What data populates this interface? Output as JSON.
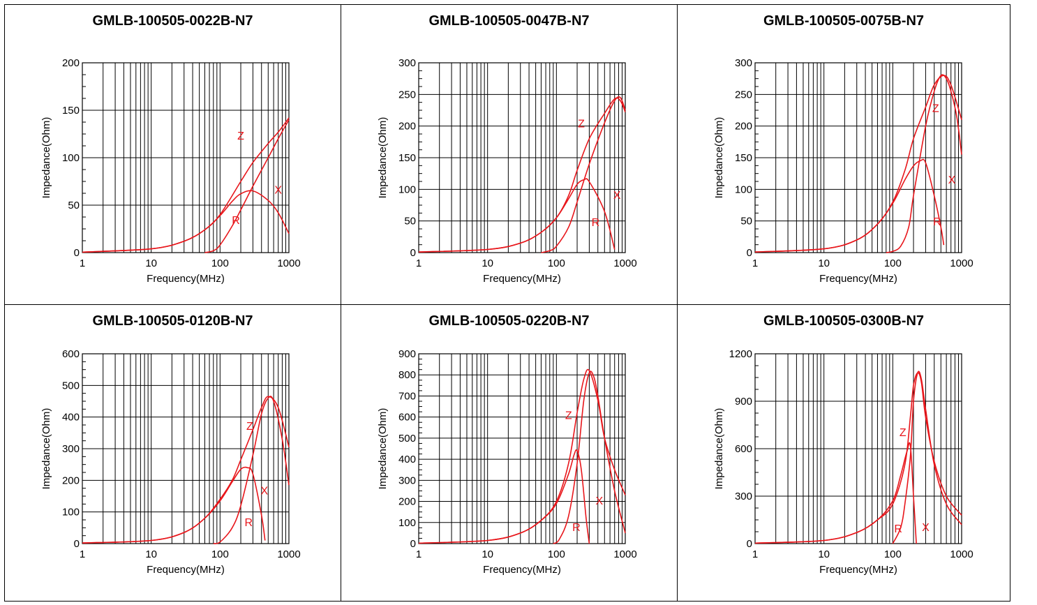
{
  "curve_color": "#e8161b",
  "chart_data": [
    {
      "type": "line",
      "title": "GMLB-100505-0022B-N7",
      "xlabel": "Frequency(MHz)",
      "ylabel": "Impedance(Ohm)",
      "xscale": "log",
      "xlim": [
        1,
        1000
      ],
      "ylim": [
        0,
        200
      ],
      "xticks": [
        "1",
        "10",
        "100",
        "1000"
      ],
      "yticks": [
        "0",
        "50",
        "100",
        "150",
        "200"
      ],
      "grid": true,
      "series": [
        {
          "name": "Z",
          "x": [
            1,
            10,
            30,
            60,
            100,
            200,
            300,
            500,
            700,
            1000
          ],
          "y": [
            0.5,
            4,
            12,
            24,
            40,
            75,
            95,
            115,
            127,
            142
          ]
        },
        {
          "name": "X",
          "x": [
            1,
            10,
            30,
            60,
            100,
            150,
            200,
            300,
            500,
            700,
            1000
          ],
          "y": [
            0.5,
            4,
            12,
            24,
            39,
            54,
            62,
            65,
            55,
            42,
            20
          ]
        },
        {
          "name": "R",
          "x": [
            60,
            80,
            100,
            150,
            200,
            300,
            500,
            700,
            1000
          ],
          "y": [
            0,
            2,
            8,
            28,
            45,
            70,
            100,
            120,
            140
          ]
        }
      ],
      "annotations": [
        {
          "text": "Z",
          "x": 200,
          "y": 119
        },
        {
          "text": "X",
          "x": 700,
          "y": 62
        },
        {
          "text": "R",
          "x": 170,
          "y": 30
        }
      ]
    },
    {
      "type": "line",
      "title": "GMLB-100505-0047B-N7",
      "xlabel": "Frequency(MHz)",
      "ylabel": "Impedance(Ohm)",
      "xscale": "log",
      "xlim": [
        1,
        1000
      ],
      "ylim": [
        0,
        300
      ],
      "xticks": [
        "1",
        "10",
        "100",
        "1000"
      ],
      "yticks": [
        "0",
        "50",
        "100",
        "150",
        "200",
        "250",
        "300"
      ],
      "grid": true,
      "series": [
        {
          "name": "Z",
          "x": [
            1,
            10,
            30,
            60,
            100,
            150,
            200,
            300,
            500,
            700,
            850,
            1000
          ],
          "y": [
            1,
            5,
            15,
            32,
            55,
            90,
            130,
            180,
            220,
            243,
            240,
            222
          ]
        },
        {
          "name": "X",
          "x": [
            1,
            10,
            30,
            60,
            100,
            150,
            200,
            250,
            300,
            500,
            700
          ],
          "y": [
            1,
            5,
            15,
            32,
            55,
            85,
            108,
            115,
            112,
            65,
            5
          ]
        },
        {
          "name": "R",
          "x": [
            60,
            80,
            100,
            150,
            200,
            300,
            500,
            700,
            850,
            1000
          ],
          "y": [
            0,
            3,
            10,
            40,
            80,
            140,
            205,
            240,
            245,
            225
          ]
        }
      ],
      "annotations": [
        {
          "text": "Z",
          "x": 230,
          "y": 198
        },
        {
          "text": "X",
          "x": 760,
          "y": 85
        },
        {
          "text": "R",
          "x": 370,
          "y": 42
        }
      ]
    },
    {
      "type": "line",
      "title": "GMLB-100505-0075B-N7",
      "xlabel": "Frequency(MHz)",
      "ylabel": "Impedance(Ohm)",
      "xscale": "log",
      "xlim": [
        1,
        1000
      ],
      "ylim": [
        0,
        300
      ],
      "xticks": [
        "1",
        "10",
        "100",
        "1000"
      ],
      "yticks": [
        "0",
        "50",
        "100",
        "150",
        "200",
        "250",
        "300"
      ],
      "grid": true,
      "series": [
        {
          "name": "Z",
          "x": [
            1,
            10,
            30,
            60,
            100,
            150,
            200,
            300,
            400,
            550,
            700,
            1000
          ],
          "y": [
            1,
            6,
            20,
            45,
            80,
            130,
            180,
            230,
            265,
            280,
            265,
            210
          ]
        },
        {
          "name": "X",
          "x": [
            1,
            10,
            30,
            60,
            100,
            150,
            200,
            250,
            300,
            400,
            500,
            550
          ],
          "y": [
            1,
            6,
            20,
            45,
            78,
            115,
            137,
            145,
            142,
            90,
            40,
            12
          ]
        },
        {
          "name": "R",
          "x": [
            80,
            100,
            130,
            170,
            200,
            300,
            400,
            500,
            600,
            700,
            850,
            1000
          ],
          "y": [
            0,
            2,
            10,
            40,
            90,
            200,
            255,
            280,
            275,
            255,
            215,
            155
          ]
        }
      ],
      "annotations": [
        {
          "text": "Z",
          "x": 420,
          "y": 222
        },
        {
          "text": "X",
          "x": 720,
          "y": 109
        },
        {
          "text": "R",
          "x": 440,
          "y": 43
        }
      ]
    },
    {
      "type": "line",
      "title": "GMLB-100505-0120B-N7",
      "xlabel": "Frequency(MHz)",
      "ylabel": "Impedance(Ohm)",
      "xscale": "log",
      "xlim": [
        1,
        1000
      ],
      "ylim": [
        0,
        600
      ],
      "xticks": [
        "1",
        "10",
        "100",
        "1000"
      ],
      "yticks": [
        "0",
        "100",
        "200",
        "300",
        "400",
        "500",
        "600"
      ],
      "grid": true,
      "series": [
        {
          "name": "Z",
          "x": [
            1,
            10,
            30,
            60,
            100,
            150,
            200,
            300,
            400,
            500,
            700,
            1000
          ],
          "y": [
            2,
            10,
            35,
            80,
            140,
            200,
            265,
            360,
            430,
            465,
            430,
            305
          ]
        },
        {
          "name": "X",
          "x": [
            1,
            10,
            30,
            60,
            100,
            150,
            200,
            250,
            300,
            400,
            450
          ],
          "y": [
            2,
            10,
            35,
            80,
            135,
            195,
            235,
            240,
            220,
            90,
            10
          ]
        },
        {
          "name": "R",
          "x": [
            80,
            100,
            150,
            200,
            300,
            400,
            500,
            600,
            800,
            1000
          ],
          "y": [
            0,
            5,
            50,
            120,
            280,
            410,
            460,
            450,
            330,
            185
          ]
        }
      ],
      "annotations": [
        {
          "text": "Z",
          "x": 270,
          "y": 360
        },
        {
          "text": "X",
          "x": 440,
          "y": 155
        },
        {
          "text": "R",
          "x": 260,
          "y": 55
        }
      ]
    },
    {
      "type": "line",
      "title": "GMLB-100505-0220B-N7",
      "xlabel": "Frequency(MHz)",
      "ylabel": "Impedance(Ohm)",
      "xscale": "log",
      "xlim": [
        1,
        1000
      ],
      "ylim": [
        0,
        900
      ],
      "xticks": [
        "1",
        "10",
        "100",
        "1000"
      ],
      "yticks": [
        "0",
        "100",
        "200",
        "300",
        "400",
        "500",
        "600",
        "700",
        "800",
        "900"
      ],
      "grid": true,
      "series": [
        {
          "name": "Z",
          "x": [
            1,
            10,
            30,
            60,
            100,
            150,
            200,
            250,
            300,
            400,
            500,
            700,
            1000
          ],
          "y": [
            2,
            15,
            50,
            110,
            200,
            380,
            620,
            780,
            820,
            680,
            500,
            350,
            230
          ]
        },
        {
          "name": "X",
          "x": [
            1,
            10,
            30,
            60,
            100,
            150,
            180,
            200,
            230,
            270,
            300
          ],
          "y": [
            2,
            15,
            50,
            110,
            190,
            330,
            420,
            440,
            350,
            120,
            0
          ]
        },
        {
          "name": "R",
          "x": [
            90,
            110,
            150,
            200,
            250,
            300,
            350,
            400,
            500,
            700,
            1000
          ],
          "y": [
            0,
            20,
            130,
            380,
            680,
            810,
            790,
            700,
            500,
            250,
            50
          ]
        }
      ],
      "annotations": [
        {
          "text": "Z",
          "x": 150,
          "y": 590
        },
        {
          "text": "X",
          "x": 420,
          "y": 185
        },
        {
          "text": "R",
          "x": 195,
          "y": 60
        }
      ]
    },
    {
      "type": "line",
      "title": "GMLB-100505-0300B-N7",
      "xlabel": "Frequency(MHz)",
      "ylabel": "Impedance(Ohm)",
      "xscale": "log",
      "xlim": [
        1,
        1000
      ],
      "ylim": [
        0,
        1200
      ],
      "xticks": [
        "1",
        "10",
        "100",
        "1000"
      ],
      "yticks": [
        "0",
        "300",
        "600",
        "900",
        "1200"
      ],
      "grid": true,
      "series": [
        {
          "name": "Z",
          "x": [
            1,
            10,
            30,
            60,
            100,
            150,
            180,
            200,
            230,
            260,
            300,
            400,
            600,
            1000
          ],
          "y": [
            3,
            20,
            70,
            150,
            250,
            500,
            800,
            1000,
            1080,
            1020,
            800,
            520,
            300,
            180
          ]
        },
        {
          "name": "X",
          "x": [
            1,
            10,
            30,
            60,
            100,
            130,
            160,
            180,
            200,
            220
          ],
          "y": [
            3,
            20,
            70,
            150,
            270,
            430,
            580,
            620,
            300,
            0
          ]
        },
        {
          "name": "R",
          "x": [
            100,
            130,
            150,
            180,
            200,
            230,
            260,
            300,
            400,
            600,
            1000
          ],
          "y": [
            0,
            100,
            250,
            550,
            900,
            1080,
            1040,
            850,
            500,
            250,
            120
          ]
        }
      ],
      "annotations": [
        {
          "text": "Z",
          "x": 140,
          "y": 680
        },
        {
          "text": "R",
          "x": 120,
          "y": 70
        },
        {
          "text": "X",
          "x": 300,
          "y": 80
        }
      ]
    }
  ]
}
